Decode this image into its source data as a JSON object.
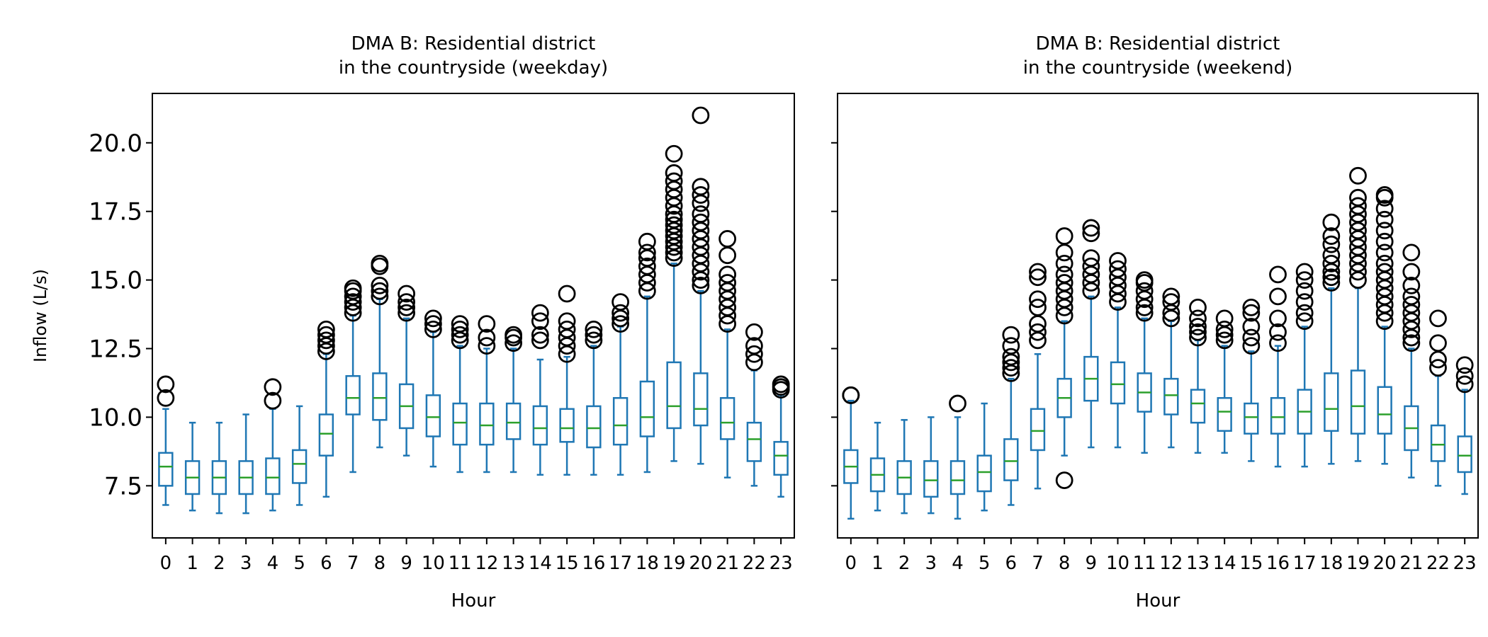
{
  "figure": {
    "ylabel": "Inflow (L/s)",
    "ylim": [
      5.6,
      21.8
    ],
    "yticks": [
      "7.5",
      "10.0",
      "12.5",
      "15.0",
      "17.5",
      "20.0"
    ],
    "box_color": "#1f77b4",
    "median_color": "#2ca02c",
    "flier_color": "#000000"
  },
  "chart_data": [
    {
      "type": "box",
      "title_line1": "DMA B: Residential district",
      "title_line2": "in the countryside (weekday)",
      "xlabel": "Hour",
      "ylabel": "Inflow (L/s)",
      "categories": [
        "0",
        "1",
        "2",
        "3",
        "4",
        "5",
        "6",
        "7",
        "8",
        "9",
        "10",
        "11",
        "12",
        "13",
        "14",
        "15",
        "16",
        "17",
        "18",
        "19",
        "20",
        "21",
        "22",
        "23"
      ],
      "boxes": [
        {
          "whislo": 6.8,
          "q1": 7.5,
          "med": 8.2,
          "q3": 8.7,
          "whishi": 10.3,
          "fliers": [
            10.7,
            11.2
          ]
        },
        {
          "whislo": 6.6,
          "q1": 7.2,
          "med": 7.8,
          "q3": 8.4,
          "whishi": 9.8,
          "fliers": []
        },
        {
          "whislo": 6.5,
          "q1": 7.2,
          "med": 7.8,
          "q3": 8.4,
          "whishi": 9.8,
          "fliers": []
        },
        {
          "whislo": 6.5,
          "q1": 7.2,
          "med": 7.8,
          "q3": 8.4,
          "whishi": 10.1,
          "fliers": []
        },
        {
          "whislo": 6.6,
          "q1": 7.2,
          "med": 7.8,
          "q3": 8.5,
          "whishi": 10.3,
          "fliers": [
            10.6,
            11.1
          ]
        },
        {
          "whislo": 6.8,
          "q1": 7.6,
          "med": 8.3,
          "q3": 8.8,
          "whishi": 10.4,
          "fliers": []
        },
        {
          "whislo": 7.1,
          "q1": 8.6,
          "med": 9.4,
          "q3": 10.1,
          "whishi": 12.3,
          "fliers": [
            12.4,
            12.6,
            12.8,
            13.0,
            13.2
          ]
        },
        {
          "whislo": 8.0,
          "q1": 10.1,
          "med": 10.7,
          "q3": 11.5,
          "whishi": 13.7,
          "fliers": [
            13.8,
            14.0,
            14.2,
            14.4,
            14.6,
            14.7
          ]
        },
        {
          "whislo": 8.9,
          "q1": 9.9,
          "med": 10.7,
          "q3": 11.6,
          "whishi": 14.3,
          "fliers": [
            14.4,
            14.6,
            14.8,
            15.5,
            15.6
          ]
        },
        {
          "whislo": 8.6,
          "q1": 9.6,
          "med": 10.4,
          "q3": 11.2,
          "whishi": 13.6,
          "fliers": [
            13.8,
            14.0,
            14.2,
            14.5
          ]
        },
        {
          "whislo": 8.2,
          "q1": 9.3,
          "med": 10.0,
          "q3": 10.8,
          "whishi": 13.1,
          "fliers": [
            13.2,
            13.4,
            13.6
          ]
        },
        {
          "whislo": 8.0,
          "q1": 9.0,
          "med": 9.8,
          "q3": 10.5,
          "whishi": 12.6,
          "fliers": [
            12.8,
            13.0,
            13.2,
            13.4
          ]
        },
        {
          "whislo": 8.0,
          "q1": 9.0,
          "med": 9.7,
          "q3": 10.5,
          "whishi": 12.5,
          "fliers": [
            12.6,
            12.9,
            13.4
          ]
        },
        {
          "whislo": 8.0,
          "q1": 9.2,
          "med": 9.8,
          "q3": 10.5,
          "whishi": 12.5,
          "fliers": [
            12.7,
            12.9,
            13.0
          ]
        },
        {
          "whislo": 7.9,
          "q1": 9.0,
          "med": 9.6,
          "q3": 10.4,
          "whishi": 12.1,
          "fliers": [
            12.8,
            13.0,
            13.5,
            13.8
          ]
        },
        {
          "whislo": 7.9,
          "q1": 9.1,
          "med": 9.6,
          "q3": 10.3,
          "whishi": 12.2,
          "fliers": [
            12.3,
            12.6,
            12.9,
            13.2,
            13.5,
            14.5
          ]
        },
        {
          "whislo": 7.9,
          "q1": 8.9,
          "med": 9.6,
          "q3": 10.4,
          "whishi": 12.6,
          "fliers": [
            12.8,
            13.0,
            13.2
          ]
        },
        {
          "whislo": 7.9,
          "q1": 9.0,
          "med": 9.7,
          "q3": 10.7,
          "whishi": 13.3,
          "fliers": [
            13.4,
            13.6,
            13.8,
            14.2
          ]
        },
        {
          "whislo": 8.0,
          "q1": 9.3,
          "med": 10.0,
          "q3": 11.3,
          "whishi": 14.4,
          "fliers": [
            14.6,
            14.9,
            15.2,
            15.5,
            15.8,
            16.0,
            16.4
          ]
        },
        {
          "whislo": 8.4,
          "q1": 9.6,
          "med": 10.4,
          "q3": 12.0,
          "whishi": 15.6,
          "fliers": [
            15.8,
            16.0,
            16.2,
            16.4,
            16.6,
            16.8,
            17.0,
            17.2,
            17.4,
            17.7,
            18.0,
            18.3,
            18.6,
            18.9,
            19.6
          ]
        },
        {
          "whislo": 8.3,
          "q1": 9.7,
          "med": 10.3,
          "q3": 11.6,
          "whishi": 14.6,
          "fliers": [
            14.8,
            15.0,
            15.3,
            15.6,
            15.9,
            16.2,
            16.5,
            16.8,
            17.1,
            17.4,
            17.8,
            18.1,
            18.4,
            21.0
          ]
        },
        {
          "whislo": 7.8,
          "q1": 9.2,
          "med": 9.8,
          "q3": 10.7,
          "whishi": 13.2,
          "fliers": [
            13.4,
            13.7,
            14.0,
            14.3,
            14.6,
            14.9,
            15.2,
            15.9,
            16.5
          ]
        },
        {
          "whislo": 7.5,
          "q1": 8.4,
          "med": 9.2,
          "q3": 9.8,
          "whishi": 11.7,
          "fliers": [
            12.0,
            12.3,
            12.6,
            13.1
          ]
        },
        {
          "whislo": 7.1,
          "q1": 7.9,
          "med": 8.6,
          "q3": 9.1,
          "whishi": 10.8,
          "fliers": [
            11.0,
            11.1,
            11.2
          ]
        }
      ]
    },
    {
      "type": "box",
      "title_line1": "DMA B: Residential district",
      "title_line2": "in the countryside (weekend)",
      "xlabel": "Hour",
      "categories": [
        "0",
        "1",
        "2",
        "3",
        "4",
        "5",
        "6",
        "7",
        "8",
        "9",
        "10",
        "11",
        "12",
        "13",
        "14",
        "15",
        "16",
        "17",
        "18",
        "19",
        "20",
        "21",
        "22",
        "23"
      ],
      "boxes": [
        {
          "whislo": 6.3,
          "q1": 7.6,
          "med": 8.2,
          "q3": 8.8,
          "whishi": 10.6,
          "fliers": [
            10.8,
            10.8
          ]
        },
        {
          "whislo": 6.6,
          "q1": 7.3,
          "med": 7.9,
          "q3": 8.5,
          "whishi": 9.8,
          "fliers": []
        },
        {
          "whislo": 6.5,
          "q1": 7.2,
          "med": 7.8,
          "q3": 8.4,
          "whishi": 9.9,
          "fliers": []
        },
        {
          "whislo": 6.5,
          "q1": 7.1,
          "med": 7.7,
          "q3": 8.4,
          "whishi": 10.0,
          "fliers": []
        },
        {
          "whislo": 6.3,
          "q1": 7.2,
          "med": 7.7,
          "q3": 8.4,
          "whishi": 10.0,
          "fliers": [
            10.5
          ]
        },
        {
          "whislo": 6.6,
          "q1": 7.3,
          "med": 8.0,
          "q3": 8.6,
          "whishi": 10.5,
          "fliers": []
        },
        {
          "whislo": 6.8,
          "q1": 7.7,
          "med": 8.4,
          "q3": 9.2,
          "whishi": 11.4,
          "fliers": [
            11.6,
            11.8,
            12.0,
            12.2,
            12.6,
            13.0
          ]
        },
        {
          "whislo": 7.4,
          "q1": 8.8,
          "med": 9.5,
          "q3": 10.3,
          "whishi": 12.3,
          "fliers": [
            12.8,
            13.1,
            13.4,
            14.0,
            14.3,
            15.1,
            15.3
          ]
        },
        {
          "whislo": 8.6,
          "q1": 10.0,
          "med": 10.7,
          "q3": 11.4,
          "whishi": 13.5,
          "fliers": [
            7.7,
            13.7,
            14.0,
            14.3,
            14.6,
            14.9,
            15.2,
            15.6,
            16.0,
            16.6
          ]
        },
        {
          "whislo": 8.9,
          "q1": 10.6,
          "med": 11.4,
          "q3": 12.2,
          "whishi": 14.4,
          "fliers": [
            14.6,
            14.9,
            15.2,
            15.5,
            15.8,
            16.7,
            16.9
          ]
        },
        {
          "whislo": 8.9,
          "q1": 10.5,
          "med": 11.2,
          "q3": 12.0,
          "whishi": 14.0,
          "fliers": [
            14.2,
            14.5,
            14.8,
            15.1,
            15.4,
            15.7
          ]
        },
        {
          "whislo": 8.7,
          "q1": 10.2,
          "med": 10.9,
          "q3": 11.6,
          "whishi": 13.6,
          "fliers": [
            13.8,
            14.0,
            14.3,
            14.6,
            14.9,
            15.0
          ]
        },
        {
          "whislo": 8.9,
          "q1": 10.1,
          "med": 10.8,
          "q3": 11.4,
          "whishi": 13.5,
          "fliers": [
            13.6,
            13.8,
            14.2,
            14.4
          ]
        },
        {
          "whislo": 8.7,
          "q1": 9.8,
          "med": 10.5,
          "q3": 11.0,
          "whishi": 12.8,
          "fliers": [
            12.9,
            13.1,
            13.3,
            13.6,
            14.0
          ]
        },
        {
          "whislo": 8.7,
          "q1": 9.5,
          "med": 10.2,
          "q3": 10.7,
          "whishi": 12.6,
          "fliers": [
            12.8,
            13.0,
            13.2,
            13.6
          ]
        },
        {
          "whislo": 8.4,
          "q1": 9.4,
          "med": 10.0,
          "q3": 10.5,
          "whishi": 12.4,
          "fliers": [
            12.6,
            12.9,
            13.3,
            13.8,
            14.0
          ]
        },
        {
          "whislo": 8.2,
          "q1": 9.4,
          "med": 10.0,
          "q3": 10.7,
          "whishi": 12.6,
          "fliers": [
            12.7,
            13.1,
            13.6,
            14.4,
            15.2
          ]
        },
        {
          "whislo": 8.2,
          "q1": 9.4,
          "med": 10.2,
          "q3": 11.0,
          "whishi": 13.3,
          "fliers": [
            13.5,
            13.8,
            14.2,
            14.6,
            15.0,
            15.3
          ]
        },
        {
          "whislo": 8.3,
          "q1": 9.5,
          "med": 10.3,
          "q3": 11.6,
          "whishi": 14.7,
          "fliers": [
            14.9,
            15.1,
            15.3,
            15.6,
            15.9,
            16.3,
            16.6,
            17.1
          ]
        },
        {
          "whislo": 8.4,
          "q1": 9.4,
          "med": 10.4,
          "q3": 11.7,
          "whishi": 14.7,
          "fliers": [
            15.0,
            15.3,
            15.6,
            15.9,
            16.2,
            16.5,
            16.8,
            17.1,
            17.4,
            17.7,
            18.0,
            18.8
          ]
        },
        {
          "whislo": 8.3,
          "q1": 9.4,
          "med": 10.1,
          "q3": 11.1,
          "whishi": 13.3,
          "fliers": [
            13.5,
            13.8,
            14.1,
            14.4,
            14.7,
            15.0,
            15.3,
            15.6,
            16.0,
            16.4,
            16.8,
            17.2,
            17.6,
            18.0,
            18.1
          ]
        },
        {
          "whislo": 7.8,
          "q1": 8.8,
          "med": 9.6,
          "q3": 10.4,
          "whishi": 12.5,
          "fliers": [
            12.7,
            12.9,
            13.2,
            13.5,
            13.8,
            14.1,
            14.4,
            14.8,
            15.3,
            16.0
          ]
        },
        {
          "whislo": 7.5,
          "q1": 8.4,
          "med": 9.0,
          "q3": 9.7,
          "whishi": 11.5,
          "fliers": [
            11.8,
            12.1,
            12.7,
            13.6
          ]
        },
        {
          "whislo": 7.2,
          "q1": 8.0,
          "med": 8.6,
          "q3": 9.3,
          "whishi": 11.0,
          "fliers": [
            11.2,
            11.5,
            11.9
          ]
        }
      ]
    }
  ]
}
